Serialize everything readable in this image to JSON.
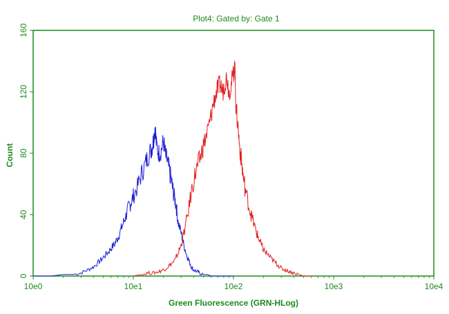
{
  "chart_data": {
    "type": "line",
    "title": "Plot4:  Gated by: Gate 1",
    "xlabel": "Green Fluorescence (GRN-HLog)",
    "ylabel": "Count",
    "x_scale": "log",
    "xlim": [
      1,
      10000
    ],
    "ylim": [
      0,
      160
    ],
    "x_ticks": [
      1,
      10,
      100,
      1000,
      10000
    ],
    "x_tick_labels": [
      "10e0",
      "10e1",
      "10e2",
      "10e3",
      "10e4"
    ],
    "y_ticks": [
      0,
      40,
      80,
      120,
      160
    ],
    "y_tick_labels": [
      "0",
      "40",
      "80",
      "120",
      "160"
    ],
    "grid": false,
    "series": [
      {
        "color": "#1a1ad6",
        "x": [
          1.0,
          1.5,
          2.0,
          2.5,
          3.0,
          3.5,
          4.0,
          4.5,
          5.0,
          5.5,
          6.0,
          6.5,
          7.0,
          7.5,
          8.0,
          8.5,
          9.0,
          9.5,
          10.0,
          11.0,
          12.0,
          13.0,
          14.0,
          15.0,
          15.5,
          16.0,
          16.5,
          17.0,
          18.0,
          19.0,
          20.0,
          21.0,
          22.0,
          23.0,
          24.0,
          25.0,
          26.0,
          27.0,
          28.0,
          30.0,
          32.0,
          34.0,
          36.0,
          38.0,
          40.0,
          43.0,
          46.0,
          50.0,
          55.0,
          60.0,
          65.0,
          70.0,
          80.0,
          90.0,
          100.0
        ],
        "y": [
          0,
          0,
          1,
          1,
          2,
          4,
          6,
          9,
          12,
          15,
          18,
          21,
          25,
          30,
          35,
          40,
          45,
          48,
          52,
          58,
          66,
          72,
          78,
          82,
          85,
          90,
          98,
          85,
          80,
          82,
          88,
          78,
          74,
          68,
          62,
          55,
          50,
          44,
          35,
          28,
          20,
          14,
          10,
          6,
          4,
          3,
          2,
          1,
          1,
          0,
          0,
          0,
          0,
          0,
          0
        ]
      },
      {
        "color": "#e01e1e",
        "x": [
          10.0,
          12.0,
          14.0,
          16.0,
          18.0,
          20.0,
          22.0,
          24.0,
          26.0,
          28.0,
          30.0,
          32.0,
          35.0,
          38.0,
          41.0,
          44.0,
          47.0,
          50.0,
          54.0,
          58.0,
          62.0,
          66.0,
          70.0,
          74.0,
          78.0,
          82.0,
          86.0,
          90.0,
          95.0,
          100.0,
          103.0,
          106.0,
          110.0,
          115.0,
          120.0,
          125.0,
          130.0,
          140.0,
          150.0,
          160.0,
          170.0,
          180.0,
          190.0,
          200.0,
          220.0,
          240.0,
          260.0,
          280.0,
          300.0,
          330.0,
          360.0,
          400.0,
          450.0,
          500.0,
          600.0
        ],
        "y": [
          0,
          1,
          2,
          2,
          3,
          4,
          6,
          8,
          10,
          15,
          20,
          28,
          40,
          55,
          65,
          72,
          78,
          85,
          92,
          100,
          110,
          118,
          122,
          125,
          120,
          126,
          130,
          120,
          125,
          132,
          137,
          110,
          100,
          85,
          75,
          65,
          58,
          48,
          40,
          34,
          28,
          24,
          20,
          17,
          14,
          11,
          9,
          7,
          5,
          4,
          3,
          2,
          1,
          0,
          0
        ]
      }
    ]
  }
}
